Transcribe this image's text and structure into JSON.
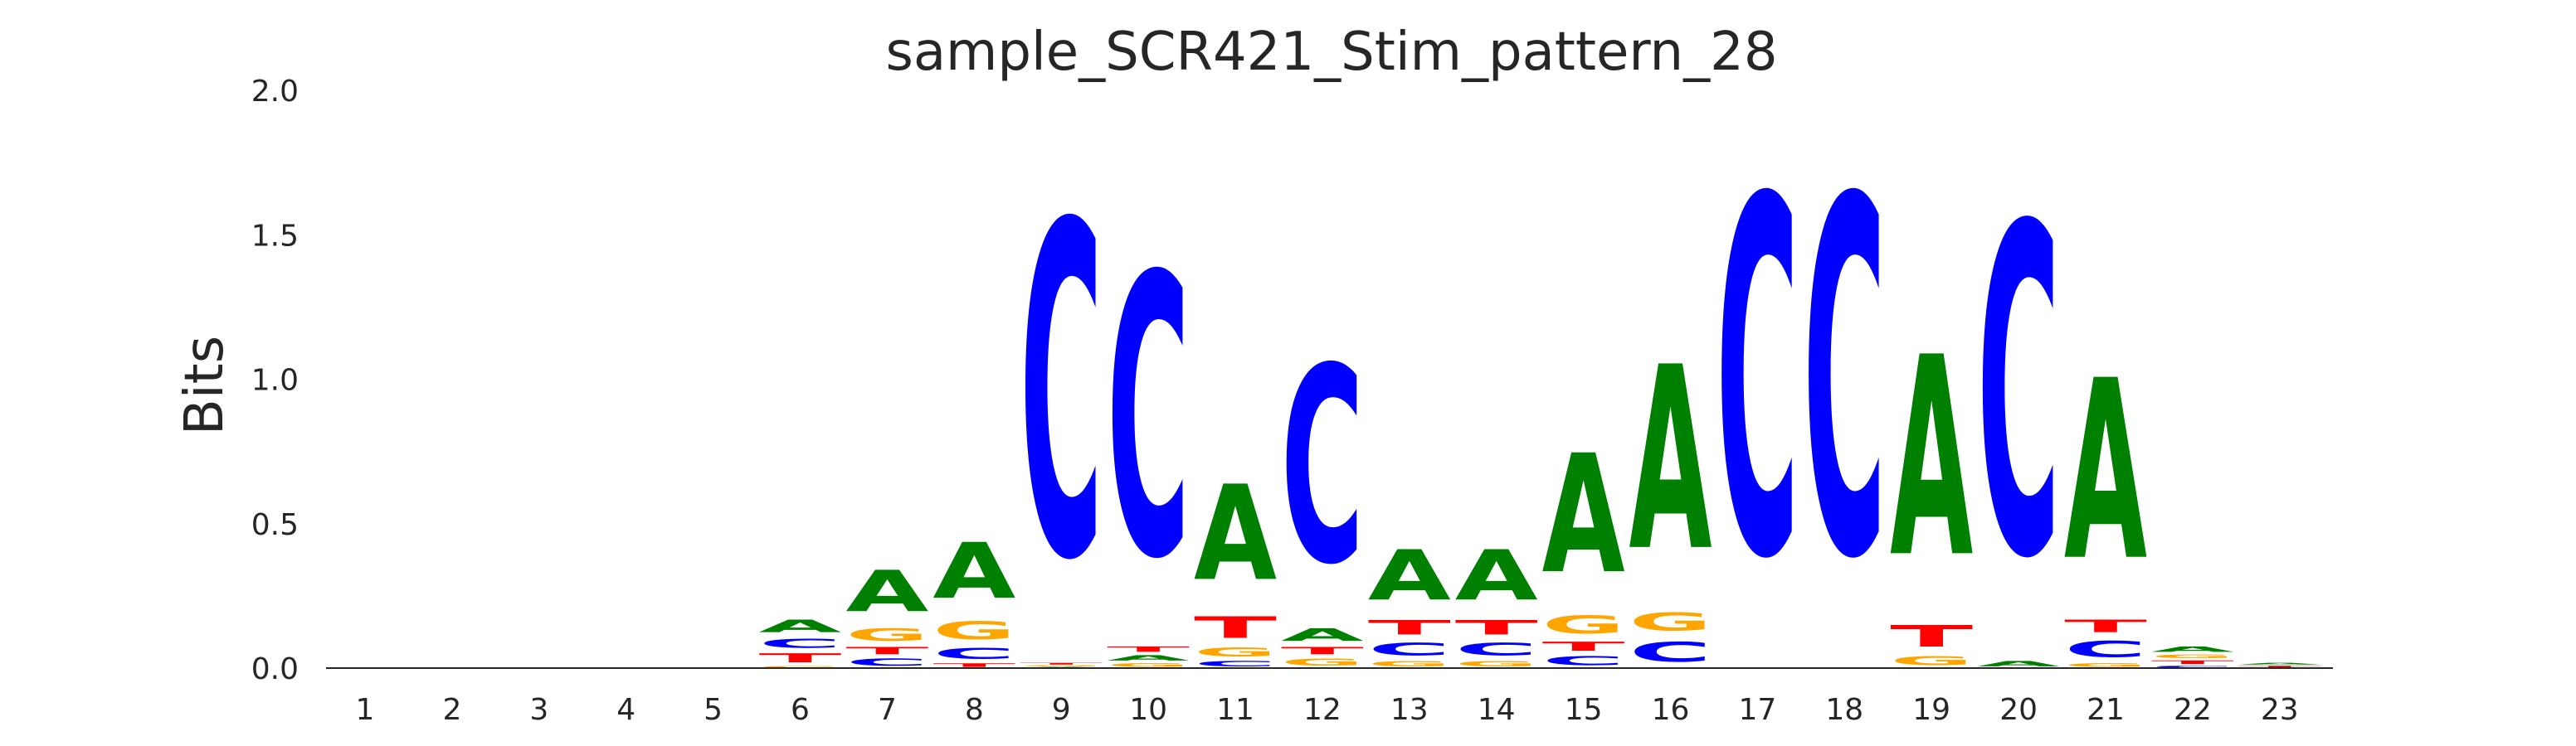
{
  "chart_data": {
    "type": "sequence-logo",
    "title": "sample_SCR421_Stim_pattern_28",
    "xlabel": "",
    "ylabel": "Bits",
    "ylim": [
      0,
      2.0
    ],
    "yticks": [
      "0.0",
      "0.5",
      "1.0",
      "1.5",
      "2.0"
    ],
    "xticks": [
      "1",
      "2",
      "3",
      "4",
      "5",
      "6",
      "7",
      "8",
      "9",
      "10",
      "11",
      "12",
      "13",
      "14",
      "15",
      "16",
      "17",
      "18",
      "19",
      "20",
      "21",
      "22",
      "23"
    ],
    "colors": {
      "A": "#008000",
      "C": "#0000ff",
      "G": "#ffa500",
      "T": "#ff0000"
    },
    "positions": [
      {
        "pos": 1,
        "letters": []
      },
      {
        "pos": 2,
        "letters": []
      },
      {
        "pos": 3,
        "letters": []
      },
      {
        "pos": 4,
        "letters": []
      },
      {
        "pos": 5,
        "letters": []
      },
      {
        "pos": 6,
        "letters": [
          {
            "base": "G",
            "bits": 0.01
          },
          {
            "base": "T",
            "bits": 0.05
          },
          {
            "base": "C",
            "bits": 0.05
          },
          {
            "base": "A",
            "bits": 0.07
          }
        ]
      },
      {
        "pos": 7,
        "letters": [
          {
            "base": "C",
            "bits": 0.04
          },
          {
            "base": "T",
            "bits": 0.04
          },
          {
            "base": "G",
            "bits": 0.07
          },
          {
            "base": "A",
            "bits": 0.23
          }
        ]
      },
      {
        "pos": 8,
        "letters": [
          {
            "base": "T",
            "bits": 0.02
          },
          {
            "base": "C",
            "bits": 0.06
          },
          {
            "base": "G",
            "bits": 0.1
          },
          {
            "base": "A",
            "bits": 0.31
          }
        ]
      },
      {
        "pos": 9,
        "letters": [
          {
            "base": "A",
            "bits": 0.005
          },
          {
            "base": "G",
            "bits": 0.005
          },
          {
            "base": "T",
            "bits": 0.01
          },
          {
            "base": "C",
            "bits": 1.85
          }
        ]
      },
      {
        "pos": 10,
        "letters": [
          {
            "base": "G",
            "bits": 0.02
          },
          {
            "base": "A",
            "bits": 0.03
          },
          {
            "base": "T",
            "bits": 0.03
          },
          {
            "base": "C",
            "bits": 1.56
          }
        ]
      },
      {
        "pos": 11,
        "letters": [
          {
            "base": "C",
            "bits": 0.03
          },
          {
            "base": "G",
            "bits": 0.05
          },
          {
            "base": "T",
            "bits": 0.12
          },
          {
            "base": "A",
            "bits": 0.53
          }
        ]
      },
      {
        "pos": 12,
        "letters": [
          {
            "base": "G",
            "bits": 0.04
          },
          {
            "base": "T",
            "bits": 0.04
          },
          {
            "base": "A",
            "bits": 0.07
          },
          {
            "base": "C",
            "bits": 1.09
          }
        ]
      },
      {
        "pos": 13,
        "letters": [
          {
            "base": "G",
            "bits": 0.03
          },
          {
            "base": "C",
            "bits": 0.07
          },
          {
            "base": "T",
            "bits": 0.08
          },
          {
            "base": "A",
            "bits": 0.28
          }
        ]
      },
      {
        "pos": 14,
        "letters": [
          {
            "base": "G",
            "bits": 0.03
          },
          {
            "base": "C",
            "bits": 0.07
          },
          {
            "base": "T",
            "bits": 0.08
          },
          {
            "base": "A",
            "bits": 0.28
          }
        ]
      },
      {
        "pos": 15,
        "letters": [
          {
            "base": "C",
            "bits": 0.05
          },
          {
            "base": "T",
            "bits": 0.05
          },
          {
            "base": "G",
            "bits": 0.1
          },
          {
            "base": "A",
            "bits": 0.66
          }
        ]
      },
      {
        "pos": 16,
        "letters": [
          {
            "base": "C",
            "bits": 0.11
          },
          {
            "base": "G",
            "bits": 0.1
          },
          {
            "base": "A",
            "bits": 1.02
          }
        ]
      },
      {
        "pos": 17,
        "letters": [
          {
            "base": "C",
            "bits": 1.98
          }
        ]
      },
      {
        "pos": 18,
        "letters": [
          {
            "base": "C",
            "bits": 1.98
          }
        ]
      },
      {
        "pos": 19,
        "letters": [
          {
            "base": "G",
            "bits": 0.05
          },
          {
            "base": "T",
            "bits": 0.12
          },
          {
            "base": "A",
            "bits": 1.11
          }
        ]
      },
      {
        "pos": 20,
        "letters": [
          {
            "base": "A",
            "bits": 0.03
          },
          {
            "base": "C",
            "bits": 1.83
          }
        ]
      },
      {
        "pos": 21,
        "letters": [
          {
            "base": "G",
            "bits": 0.02
          },
          {
            "base": "C",
            "bits": 0.09
          },
          {
            "base": "T",
            "bits": 0.07
          },
          {
            "base": "A",
            "bits": 1.0
          }
        ]
      },
      {
        "pos": 22,
        "letters": [
          {
            "base": "C",
            "bits": 0.01
          },
          {
            "base": "T",
            "bits": 0.02
          },
          {
            "base": "G",
            "bits": 0.02
          },
          {
            "base": "A",
            "bits": 0.03
          }
        ]
      },
      {
        "pos": 23,
        "letters": [
          {
            "base": "T",
            "bits": 0.01
          },
          {
            "base": "A",
            "bits": 0.01
          }
        ]
      }
    ]
  }
}
